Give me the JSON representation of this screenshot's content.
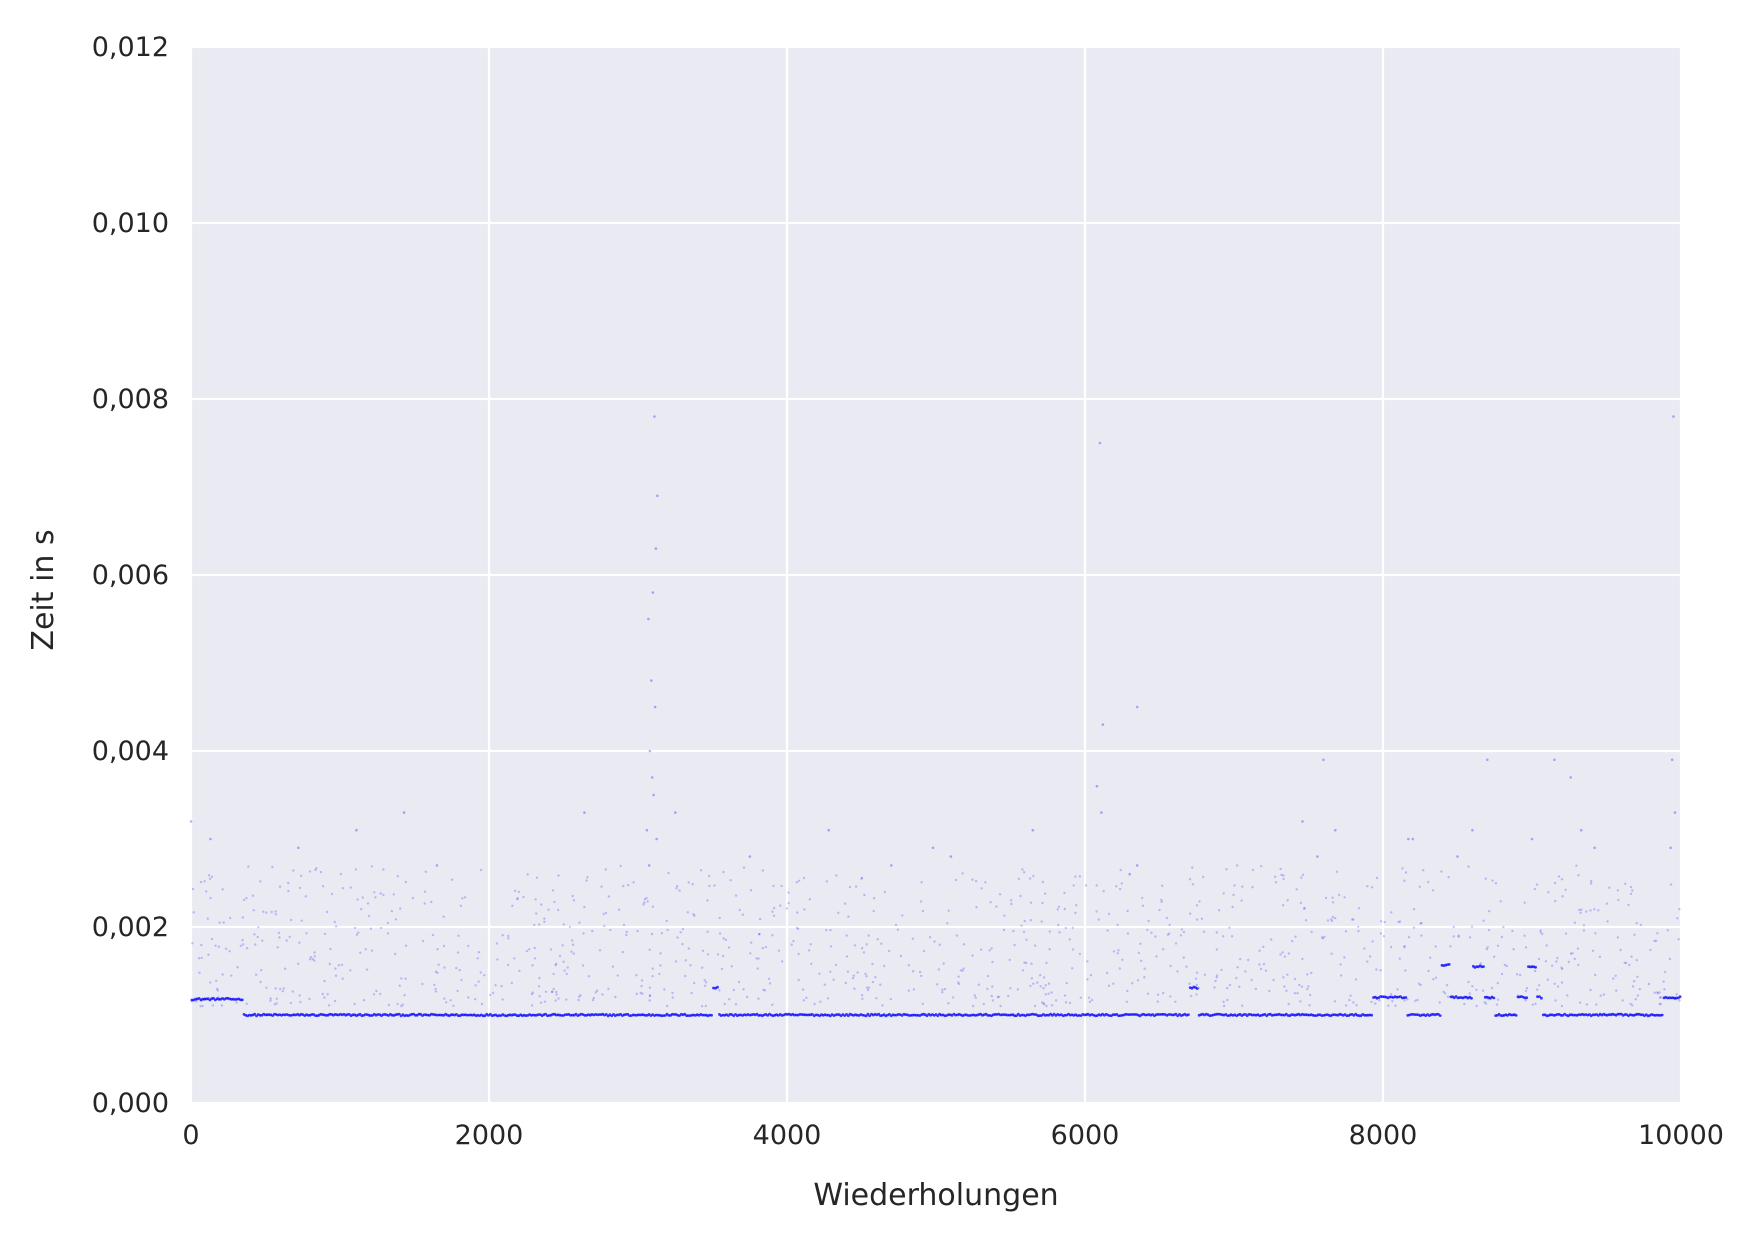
{
  "chart_data": {
    "type": "scatter",
    "title": "",
    "xlabel": "Wiederholungen",
    "ylabel": "Zeit in s",
    "xlim": [
      0,
      10000
    ],
    "ylim": [
      0,
      0.012
    ],
    "x_ticks": [
      0,
      2000,
      4000,
      6000,
      8000,
      10000
    ],
    "x_tick_labels": [
      "0",
      "2000",
      "4000",
      "6000",
      "8000",
      "10000"
    ],
    "y_ticks": [
      0,
      0.002,
      0.004,
      0.006,
      0.008,
      0.01,
      0.012
    ],
    "y_tick_labels": [
      "0,000",
      "0,002",
      "0,004",
      "0,006",
      "0,008",
      "0,010",
      "0,012"
    ],
    "grid": true,
    "legend": "none",
    "colors": {
      "background": "#eaeaf2",
      "grid": "#ffffff",
      "points": "#0000ff"
    },
    "n_points": 10000,
    "baseline_segments": [
      {
        "x": [
          0,
          350
        ],
        "y": 0.00118
      },
      {
        "x": [
          350,
          3500
        ],
        "y": 0.001
      },
      {
        "x": [
          3500,
          3540
        ],
        "y": 0.00131
      },
      {
        "x": [
          3540,
          6700
        ],
        "y": 0.001
      },
      {
        "x": [
          6700,
          6760
        ],
        "y": 0.00131
      },
      {
        "x": [
          6760,
          7930
        ],
        "y": 0.001
      },
      {
        "x": [
          7930,
          8160
        ],
        "y": 0.0012
      },
      {
        "x": [
          8160,
          8390
        ],
        "y": 0.001
      },
      {
        "x": [
          8390,
          8450
        ],
        "y": 0.00157
      },
      {
        "x": [
          8450,
          8600
        ],
        "y": 0.0012
      },
      {
        "x": [
          8600,
          8680
        ],
        "y": 0.00155
      },
      {
        "x": [
          8680,
          8750
        ],
        "y": 0.0012
      },
      {
        "x": [
          8750,
          8900
        ],
        "y": 0.001
      },
      {
        "x": [
          8900,
          8970
        ],
        "y": 0.0012
      },
      {
        "x": [
          8970,
          9030
        ],
        "y": 0.00155
      },
      {
        "x": [
          9030,
          9070
        ],
        "y": 0.0012
      },
      {
        "x": [
          9070,
          9880
        ],
        "y": 0.001
      },
      {
        "x": [
          9880,
          10000
        ],
        "y": 0.0012
      }
    ],
    "scatter_band": {
      "y_min": 0.001,
      "y_max": 0.002,
      "fraction_of_points": 0.22
    },
    "outliers": [
      {
        "x": 3070,
        "y": 0.0055
      },
      {
        "x": 3090,
        "y": 0.0048
      },
      {
        "x": 3100,
        "y": 0.0058
      },
      {
        "x": 3110,
        "y": 0.0078
      },
      {
        "x": 3120,
        "y": 0.0063
      },
      {
        "x": 3130,
        "y": 0.0069
      },
      {
        "x": 3115,
        "y": 0.0045
      },
      {
        "x": 3080,
        "y": 0.004
      },
      {
        "x": 3095,
        "y": 0.0037
      },
      {
        "x": 3060,
        "y": 0.0031
      },
      {
        "x": 3105,
        "y": 0.0035
      },
      {
        "x": 3075,
        "y": 0.0027
      },
      {
        "x": 3125,
        "y": 0.003
      },
      {
        "x": 6100,
        "y": 0.0075
      },
      {
        "x": 6120,
        "y": 0.0043
      },
      {
        "x": 6350,
        "y": 0.0045
      },
      {
        "x": 6080,
        "y": 0.0036
      },
      {
        "x": 6110,
        "y": 0.0033
      },
      {
        "x": 6300,
        "y": 0.0026
      },
      {
        "x": 5650,
        "y": 0.0031
      },
      {
        "x": 9950,
        "y": 0.0078
      },
      {
        "x": 9940,
        "y": 0.0039
      },
      {
        "x": 9960,
        "y": 0.0033
      },
      {
        "x": 9930,
        "y": 0.0029
      },
      {
        "x": 9260,
        "y": 0.0037
      },
      {
        "x": 9150,
        "y": 0.0039
      },
      {
        "x": 8700,
        "y": 0.0039
      },
      {
        "x": 7600,
        "y": 0.0039
      },
      {
        "x": 7680,
        "y": 0.0031
      },
      {
        "x": 7460,
        "y": 0.0032
      },
      {
        "x": 8170,
        "y": 0.003
      },
      {
        "x": 8200,
        "y": 0.003
      },
      {
        "x": 8600,
        "y": 0.0031
      },
      {
        "x": 9000,
        "y": 0.003
      },
      {
        "x": 9330,
        "y": 0.0031
      },
      {
        "x": 0,
        "y": 0.0032
      },
      {
        "x": 130,
        "y": 0.003
      },
      {
        "x": 1430,
        "y": 0.0033
      },
      {
        "x": 2640,
        "y": 0.0033
      },
      {
        "x": 1110,
        "y": 0.0031
      },
      {
        "x": 4280,
        "y": 0.0031
      },
      {
        "x": 3250,
        "y": 0.0033
      },
      {
        "x": 720,
        "y": 0.0029
      },
      {
        "x": 4980,
        "y": 0.0029
      },
      {
        "x": 3750,
        "y": 0.0028
      },
      {
        "x": 5100,
        "y": 0.0028
      },
      {
        "x": 4700,
        "y": 0.0027
      },
      {
        "x": 1650,
        "y": 0.0027
      },
      {
        "x": 6350,
        "y": 0.0027
      },
      {
        "x": 7560,
        "y": 0.0028
      },
      {
        "x": 8500,
        "y": 0.0028
      },
      {
        "x": 9420,
        "y": 0.0029
      }
    ]
  }
}
